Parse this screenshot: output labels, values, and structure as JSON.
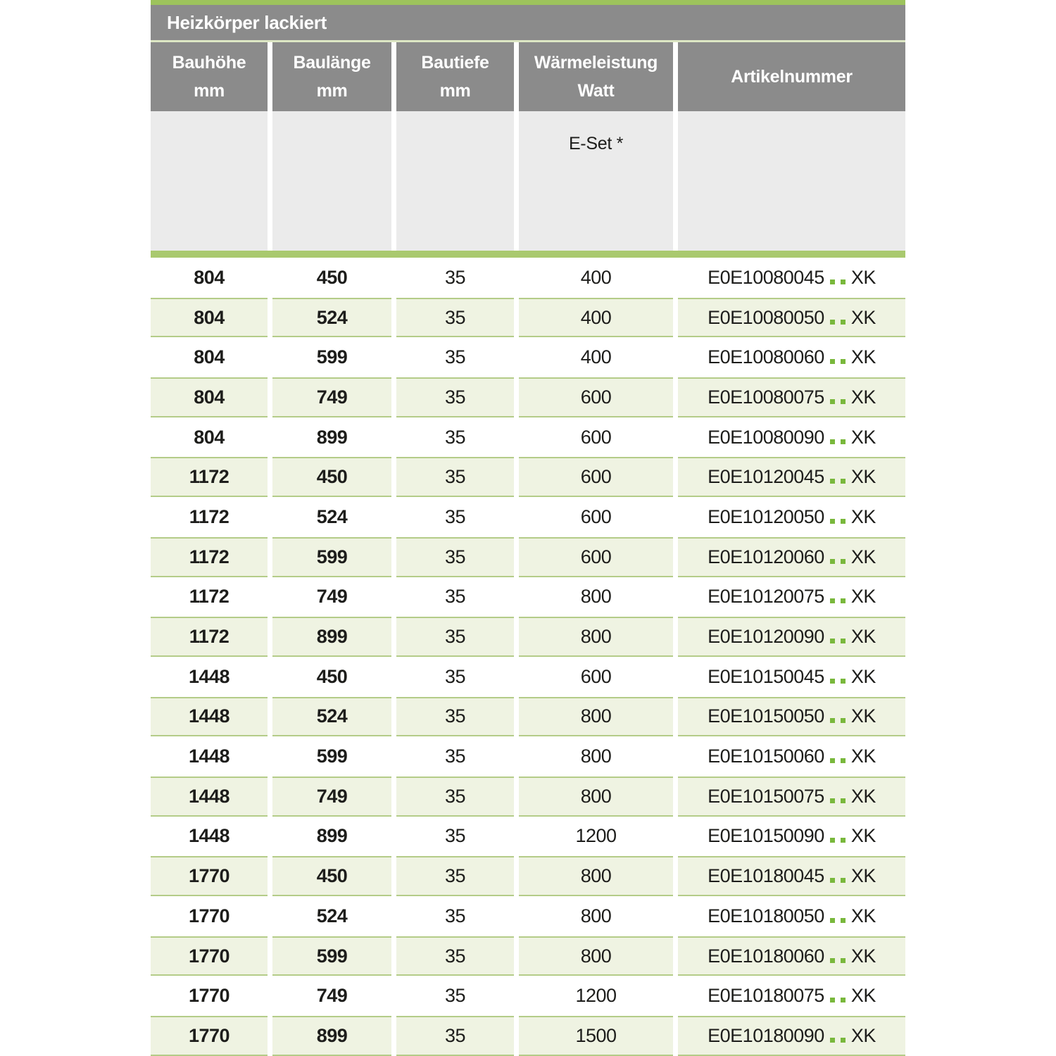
{
  "table": {
    "title": "Heizkörper lackiert",
    "columns": [
      {
        "line1": "Bauhöhe",
        "line2": "mm"
      },
      {
        "line1": "Baulänge",
        "line2": "mm"
      },
      {
        "line1": "Bautiefe",
        "line2": "mm"
      },
      {
        "line1": "Wärmeleistung",
        "line2": "Watt"
      },
      {
        "line1": "Artikelnummer",
        "line2": ""
      }
    ],
    "subheader": {
      "eset_label": "E-Set *"
    },
    "rows": [
      {
        "bauhoehe": "804",
        "baulaenge": "450",
        "bautiefe": "35",
        "waermeleistung": "400",
        "artikelnummer": "E0E10080045",
        "artikelnummer_suffix": "XK"
      },
      {
        "bauhoehe": "804",
        "baulaenge": "524",
        "bautiefe": "35",
        "waermeleistung": "400",
        "artikelnummer": "E0E10080050",
        "artikelnummer_suffix": "XK"
      },
      {
        "bauhoehe": "804",
        "baulaenge": "599",
        "bautiefe": "35",
        "waermeleistung": "400",
        "artikelnummer": "E0E10080060",
        "artikelnummer_suffix": "XK"
      },
      {
        "bauhoehe": "804",
        "baulaenge": "749",
        "bautiefe": "35",
        "waermeleistung": "600",
        "artikelnummer": "E0E10080075",
        "artikelnummer_suffix": "XK"
      },
      {
        "bauhoehe": "804",
        "baulaenge": "899",
        "bautiefe": "35",
        "waermeleistung": "600",
        "artikelnummer": "E0E10080090",
        "artikelnummer_suffix": "XK"
      },
      {
        "bauhoehe": "1172",
        "baulaenge": "450",
        "bautiefe": "35",
        "waermeleistung": "600",
        "artikelnummer": "E0E10120045",
        "artikelnummer_suffix": "XK"
      },
      {
        "bauhoehe": "1172",
        "baulaenge": "524",
        "bautiefe": "35",
        "waermeleistung": "600",
        "artikelnummer": "E0E10120050",
        "artikelnummer_suffix": "XK"
      },
      {
        "bauhoehe": "1172",
        "baulaenge": "599",
        "bautiefe": "35",
        "waermeleistung": "600",
        "artikelnummer": "E0E10120060",
        "artikelnummer_suffix": "XK"
      },
      {
        "bauhoehe": "1172",
        "baulaenge": "749",
        "bautiefe": "35",
        "waermeleistung": "800",
        "artikelnummer": "E0E10120075",
        "artikelnummer_suffix": "XK"
      },
      {
        "bauhoehe": "1172",
        "baulaenge": "899",
        "bautiefe": "35",
        "waermeleistung": "800",
        "artikelnummer": "E0E10120090",
        "artikelnummer_suffix": "XK"
      },
      {
        "bauhoehe": "1448",
        "baulaenge": "450",
        "bautiefe": "35",
        "waermeleistung": "600",
        "artikelnummer": "E0E10150045",
        "artikelnummer_suffix": "XK"
      },
      {
        "bauhoehe": "1448",
        "baulaenge": "524",
        "bautiefe": "35",
        "waermeleistung": "800",
        "artikelnummer": "E0E10150050",
        "artikelnummer_suffix": "XK"
      },
      {
        "bauhoehe": "1448",
        "baulaenge": "599",
        "bautiefe": "35",
        "waermeleistung": "800",
        "artikelnummer": "E0E10150060",
        "artikelnummer_suffix": "XK"
      },
      {
        "bauhoehe": "1448",
        "baulaenge": "749",
        "bautiefe": "35",
        "waermeleistung": "800",
        "artikelnummer": "E0E10150075",
        "artikelnummer_suffix": "XK"
      },
      {
        "bauhoehe": "1448",
        "baulaenge": "899",
        "bautiefe": "35",
        "waermeleistung": "1200",
        "artikelnummer": "E0E10150090",
        "artikelnummer_suffix": "XK"
      },
      {
        "bauhoehe": "1770",
        "baulaenge": "450",
        "bautiefe": "35",
        "waermeleistung": "800",
        "artikelnummer": "E0E10180045",
        "artikelnummer_suffix": "XK"
      },
      {
        "bauhoehe": "1770",
        "baulaenge": "524",
        "bautiefe": "35",
        "waermeleistung": "800",
        "artikelnummer": "E0E10180050",
        "artikelnummer_suffix": "XK"
      },
      {
        "bauhoehe": "1770",
        "baulaenge": "599",
        "bautiefe": "35",
        "waermeleistung": "800",
        "artikelnummer": "E0E10180060",
        "artikelnummer_suffix": "XK"
      },
      {
        "bauhoehe": "1770",
        "baulaenge": "749",
        "bautiefe": "35",
        "waermeleistung": "1200",
        "artikelnummer": "E0E10180075",
        "artikelnummer_suffix": "XK"
      },
      {
        "bauhoehe": "1770",
        "baulaenge": "899",
        "bautiefe": "35",
        "waermeleistung": "1500",
        "artikelnummer": "E0E10180090",
        "artikelnummer_suffix": "XK"
      }
    ],
    "colors": {
      "accent_green": "#9dc35c",
      "divider_green": "#a9c96e",
      "row_green_bg": "#eff3e2",
      "row_green_border": "#b4cc88",
      "dot_green": "#79b83c",
      "header_gray": "#8b8b8b",
      "subrow_gray": "#ebebeb",
      "text_dark": "#1d1d1b"
    }
  }
}
